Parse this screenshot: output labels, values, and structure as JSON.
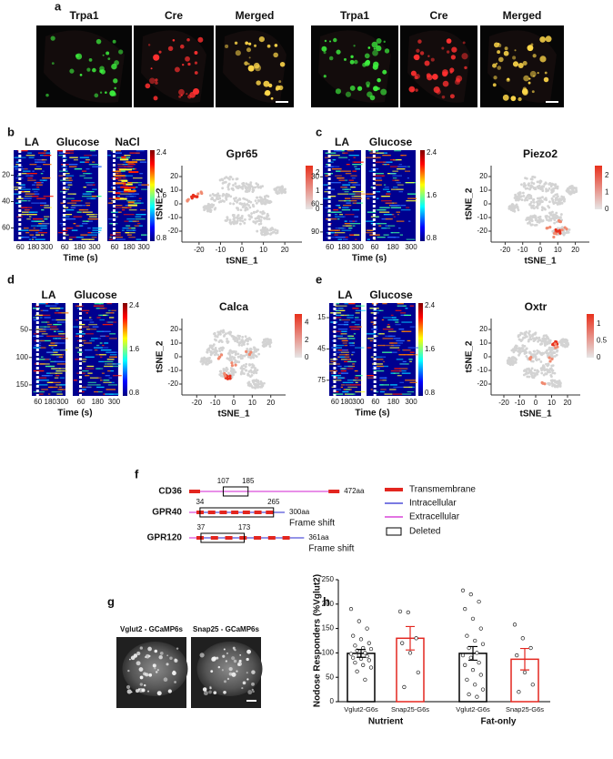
{
  "panel_a": {
    "letter": "a",
    "labels": [
      "Trpa1",
      "Cre",
      "Merged",
      "Trpa1",
      "Cre",
      "Merged"
    ]
  },
  "panels_calcium": [
    {
      "letter": "b",
      "heatmaps": [
        "LA",
        "Glucose",
        "NaCl"
      ],
      "yticks": [
        20,
        40,
        60
      ],
      "ylim": [
        1,
        70
      ],
      "xticks": [
        60,
        180,
        300
      ],
      "xlim": [
        0,
        330
      ],
      "xlabel": "Time (s)",
      "cticks": [
        0.8,
        1.6,
        2.4
      ],
      "clim": [
        0.75,
        2.45
      ],
      "tsne": {
        "title": "Gpr65",
        "xlabel": "tSNE_1",
        "ylabel": "tSNE_2",
        "xticks": [
          -20,
          -10,
          0,
          10,
          20
        ],
        "xlim": [
          -28,
          28
        ],
        "yticks": [
          -20,
          -10,
          0,
          10,
          20
        ],
        "ylim": [
          -28,
          28
        ],
        "cticks": [
          0,
          1,
          2
        ],
        "clim": [
          0,
          2.4
        ]
      }
    },
    {
      "letter": "c",
      "heatmaps": [
        "LA",
        "Glucose"
      ],
      "yticks": [
        30,
        60,
        90
      ],
      "ylim": [
        1,
        100
      ],
      "xticks": [
        60,
        180,
        300
      ],
      "xlim": [
        0,
        330
      ],
      "xlabel": "Time (s)",
      "cticks": [
        0.8,
        1.6,
        2.4
      ],
      "clim": [
        0.75,
        2.45
      ],
      "tsne": {
        "title": "Piezo2",
        "xlabel": "tSNE_1",
        "ylabel": "tSNE_2",
        "xticks": [
          -20,
          -10,
          0,
          10,
          20
        ],
        "xlim": [
          -28,
          28
        ],
        "yticks": [
          -20,
          -10,
          0,
          10,
          20
        ],
        "ylim": [
          -28,
          28
        ],
        "cticks": [
          0,
          1,
          2
        ],
        "clim": [
          0,
          2.6
        ]
      }
    },
    {
      "letter": "d",
      "heatmaps": [
        "LA",
        "Glucose"
      ],
      "yticks": [
        50,
        100,
        150
      ],
      "ylim": [
        1,
        170
      ],
      "xticks": [
        60,
        180,
        300
      ],
      "xlim": [
        0,
        330
      ],
      "xlabel": "Time (s)",
      "cticks": [
        0.8,
        1.6,
        2.4
      ],
      "clim": [
        0.75,
        2.45
      ],
      "tsne": {
        "title": "Calca",
        "xlabel": "tSNE_1",
        "ylabel": "tSNE_2",
        "xticks": [
          -20,
          -10,
          0,
          10,
          20
        ],
        "xlim": [
          -28,
          28
        ],
        "yticks": [
          -20,
          -10,
          0,
          10,
          20
        ],
        "ylim": [
          -28,
          28
        ],
        "cticks": [
          0,
          2,
          4
        ],
        "clim": [
          0,
          5
        ]
      }
    },
    {
      "letter": "e",
      "heatmaps": [
        "LA",
        "Glucose"
      ],
      "yticks": [
        15,
        45,
        75
      ],
      "ylim": [
        1,
        90
      ],
      "xticks": [
        60,
        180,
        300
      ],
      "xlim": [
        0,
        330
      ],
      "xlabel": "Time (s)",
      "cticks": [
        0.8,
        1.6,
        2.4
      ],
      "clim": [
        0.75,
        2.45
      ],
      "tsne": {
        "title": "Oxtr",
        "xlabel": "tSNE_1",
        "ylabel": "tSNE_2",
        "xticks": [
          -20,
          -10,
          0,
          10,
          20
        ],
        "xlim": [
          -28,
          28
        ],
        "yticks": [
          -20,
          -10,
          0,
          10,
          20
        ],
        "ylim": [
          -28,
          28
        ],
        "cticks": [
          0,
          0.5,
          1
        ],
        "clim": [
          0,
          1.3
        ]
      }
    }
  ],
  "panel_f": {
    "letter": "f",
    "proteins": [
      {
        "name": "CD36",
        "start": 107,
        "end": 185,
        "length": {
          "value": 472,
          "label": "472aa"
        }
      },
      {
        "name": "GPR40",
        "start": 34,
        "end": 265,
        "length": {
          "value": 300,
          "label": "300aa"
        },
        "annotation": "Frame shift"
      },
      {
        "name": "GPR120",
        "start": 37,
        "end": 173,
        "length": {
          "value": 361,
          "label": "361aa"
        },
        "annotation": "Frame shift"
      }
    ],
    "legend": [
      "Transmembrane",
      "Intracellular",
      "Extracellular",
      "Deleted"
    ]
  },
  "panel_g": {
    "letter": "g",
    "labels": [
      "Vglut2 - GCaMP6s",
      "Snap25 - GCaMP6s"
    ]
  },
  "chart_data": {
    "type": "bar",
    "letter": "h",
    "ylabel": "Nodose Responders (%Vglut2)",
    "categories": [
      "Vglut2-G6s",
      "Snap25-G6s",
      "Vglut2-G6s",
      "Snap25-G6s"
    ],
    "groups": [
      "Nutrient",
      "Fat-only"
    ],
    "values": [
      99,
      130,
      99,
      87
    ],
    "errors": [
      8,
      24,
      14,
      22
    ],
    "colors": [
      "#000000",
      "#e3261f",
      "#000000",
      "#e3261f"
    ],
    "points": [
      [
        190,
        165,
        150,
        135,
        128,
        120,
        115,
        110,
        108,
        105,
        100,
        98,
        95,
        93,
        90,
        88,
        85,
        80,
        75,
        70,
        62,
        45
      ],
      [
        185,
        183,
        130,
        120,
        100,
        60,
        30
      ],
      [
        228,
        220,
        205,
        190,
        170,
        150,
        135,
        125,
        118,
        110,
        100,
        95,
        90,
        80,
        75,
        65,
        55,
        45,
        35,
        25,
        15,
        10
      ],
      [
        158,
        130,
        110,
        95,
        60,
        35,
        20
      ]
    ],
    "ylim": [
      0,
      250
    ],
    "yticks": [
      0,
      50,
      100,
      150,
      200,
      250
    ]
  }
}
